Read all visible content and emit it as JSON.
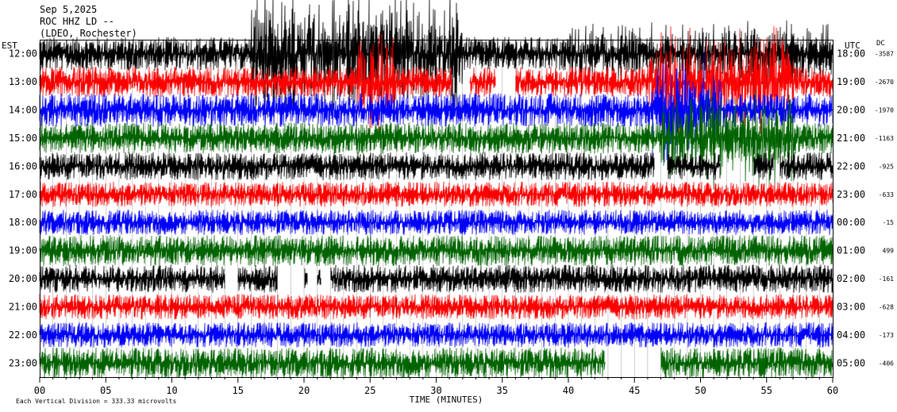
{
  "header": {
    "date": "Sep 5,2025",
    "station": "ROC HHZ LD --",
    "location": "(LDEO, Rochester)"
  },
  "left_axis_label": "EST",
  "right_axis_label": "UTC",
  "dc_label": "DC",
  "xlabel": "TIME (MINUTES)",
  "footer": "Each Vertical Division = 333.33 microvolts",
  "colors": {
    "cycle": [
      "#000000",
      "#ff0000",
      "#0000ff",
      "#006400"
    ],
    "frame": "#000000",
    "background": "#ffffff"
  },
  "chart_data": {
    "type": "line",
    "xlim": [
      0,
      60
    ],
    "x_ticks": [
      "00",
      "05",
      "10",
      "15",
      "20",
      "25",
      "30",
      "35",
      "40",
      "45",
      "50",
      "55",
      "60"
    ],
    "rows": [
      {
        "est": "12:00",
        "utc": "18:00",
        "dc": "-3587",
        "color": "#000000",
        "amplitude": 0.6,
        "events": [
          [
            16,
            32,
            3.0
          ],
          [
            40,
            60,
            1.5
          ]
        ],
        "gaps": []
      },
      {
        "est": "13:00",
        "utc": "19:00",
        "dc": "-2670",
        "color": "#ff0000",
        "amplitude": 0.55,
        "events": [
          [
            24,
            27,
            2.5
          ],
          [
            46,
            57,
            2.8
          ]
        ],
        "gaps": [
          [
            31.2,
            32.5
          ],
          [
            34.5,
            36
          ]
        ]
      },
      {
        "est": "14:00",
        "utc": "20:00",
        "dc": "-1970",
        "color": "#0000ff",
        "amplitude": 0.6,
        "events": [
          [
            46,
            52,
            2.5
          ]
        ],
        "gaps": []
      },
      {
        "est": "15:00",
        "utc": "21:00",
        "dc": "-1163",
        "color": "#006400",
        "amplitude": 0.55,
        "events": [
          [
            47,
            57,
            2.5
          ]
        ],
        "gaps": []
      },
      {
        "est": "16:00",
        "utc": "22:00",
        "dc": "-925",
        "color": "#000000",
        "amplitude": 0.5,
        "events": [],
        "gaps": [
          [
            46.5,
            47.5
          ],
          [
            51.5,
            54
          ],
          [
            55.5,
            56
          ]
        ]
      },
      {
        "est": "17:00",
        "utc": "23:00",
        "dc": "-633",
        "color": "#ff0000",
        "amplitude": 0.45,
        "events": [],
        "gaps": []
      },
      {
        "est": "18:00",
        "utc": "00:00",
        "dc": "-15",
        "color": "#0000ff",
        "amplitude": 0.45,
        "events": [],
        "gaps": []
      },
      {
        "est": "19:00",
        "utc": "01:00",
        "dc": "499",
        "color": "#006400",
        "amplitude": 0.55,
        "events": [],
        "gaps": []
      },
      {
        "est": "20:00",
        "utc": "02:00",
        "dc": "-161",
        "color": "#000000",
        "amplitude": 0.5,
        "events": [],
        "gaps": [
          [
            14,
            15
          ],
          [
            18,
            20
          ],
          [
            20.3,
            21
          ],
          [
            21.3,
            22
          ]
        ]
      },
      {
        "est": "21:00",
        "utc": "03:00",
        "dc": "-628",
        "color": "#ff0000",
        "amplitude": 0.45,
        "events": [],
        "gaps": []
      },
      {
        "est": "22:00",
        "utc": "04:00",
        "dc": "-173",
        "color": "#0000ff",
        "amplitude": 0.45,
        "events": [],
        "gaps": []
      },
      {
        "est": "23:00",
        "utc": "05:00",
        "dc": "-406",
        "color": "#006400",
        "amplitude": 0.55,
        "events": [],
        "gaps": [
          [
            42.8,
            47
          ]
        ]
      }
    ]
  }
}
